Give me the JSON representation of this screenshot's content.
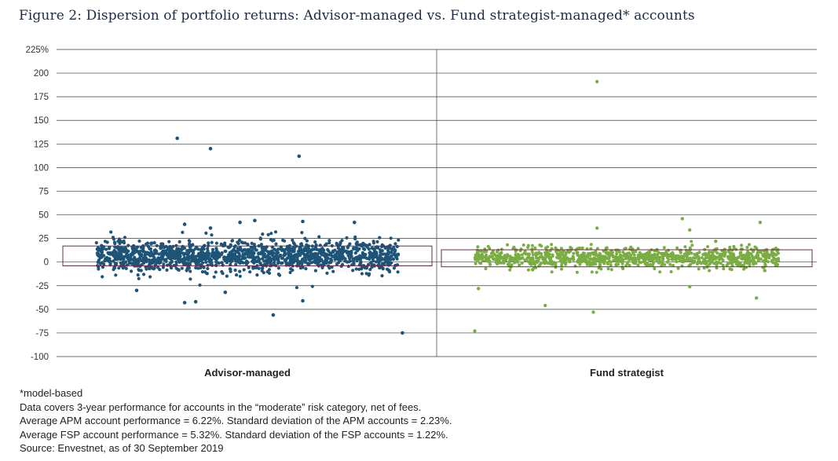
{
  "colors": {
    "advisor_points": "#1d5478",
    "fund_points": "#7aad42",
    "band_outline": "#6b2a4a",
    "grid": "#3a3a3a",
    "divider": "#555555"
  },
  "chart_data": {
    "type": "scatter",
    "title": "Figure 2: Dispersion of portfolio returns: Advisor-managed vs. Fund strategist-managed* accounts",
    "ylim": [
      -100,
      225
    ],
    "yticks": [
      {
        "value": 225,
        "label": "225%"
      },
      {
        "value": 200,
        "label": "200"
      },
      {
        "value": 175,
        "label": "175"
      },
      {
        "value": 150,
        "label": "150"
      },
      {
        "value": 125,
        "label": "125"
      },
      {
        "value": 100,
        "label": "100"
      },
      {
        "value": 75,
        "label": "75"
      },
      {
        "value": 50,
        "label": "50"
      },
      {
        "value": 25,
        "label": "25"
      },
      {
        "value": 0,
        "label": "0"
      },
      {
        "value": -25,
        "label": "-25"
      },
      {
        "value": -50,
        "label": "-50"
      },
      {
        "value": -75,
        "label": "-75"
      },
      {
        "value": -100,
        "label": "-100"
      }
    ],
    "grid": true,
    "legend": "none",
    "categories": [
      "Advisor-managed",
      "Fund strategist"
    ],
    "series": [
      {
        "category": "Advisor-managed",
        "color": "#1d5478",
        "band": [
          -4,
          17
        ],
        "outliers": [
          {
            "x": 0.31,
            "y": 131
          },
          {
            "x": 0.4,
            "y": 120
          },
          {
            "x": 0.64,
            "y": 112
          },
          {
            "x": 0.57,
            "y": -56
          },
          {
            "x": 0.65,
            "y": -41
          },
          {
            "x": 0.33,
            "y": -43
          },
          {
            "x": 0.36,
            "y": -42
          },
          {
            "x": 0.44,
            "y": -32
          },
          {
            "x": 0.2,
            "y": -30
          },
          {
            "x": 0.92,
            "y": -75
          },
          {
            "x": 0.52,
            "y": 44
          },
          {
            "x": 0.65,
            "y": 43
          },
          {
            "x": 0.79,
            "y": 42
          },
          {
            "x": 0.33,
            "y": 40
          },
          {
            "x": 0.48,
            "y": 42
          },
          {
            "x": 0.4,
            "y": 36
          }
        ]
      },
      {
        "category": "Fund strategist",
        "color": "#7aad42",
        "band": [
          -5,
          13
        ],
        "outliers": [
          {
            "x": 0.42,
            "y": 191
          },
          {
            "x": 0.65,
            "y": 46
          },
          {
            "x": 0.86,
            "y": 42
          },
          {
            "x": 0.42,
            "y": 36
          },
          {
            "x": 0.67,
            "y": 34
          },
          {
            "x": 0.74,
            "y": 22
          },
          {
            "x": 0.28,
            "y": -46
          },
          {
            "x": 0.41,
            "y": -53
          },
          {
            "x": 0.09,
            "y": -73
          },
          {
            "x": 0.1,
            "y": -28
          },
          {
            "x": 0.85,
            "y": -38
          },
          {
            "x": 0.67,
            "y": -26
          }
        ]
      }
    ]
  },
  "notes": [
    "*model-based",
    "Data covers 3-year performance for accounts in the “moderate” risk category, net of fees.",
    "Average APM account performance = 6.22%. Standard deviation of the APM accounts = 2.23%.",
    "Average FSP account performance = 5.32%. Standard deviation of the FSP accounts = 1.22%.",
    "Source: Envestnet, as of 30 September 2019"
  ]
}
